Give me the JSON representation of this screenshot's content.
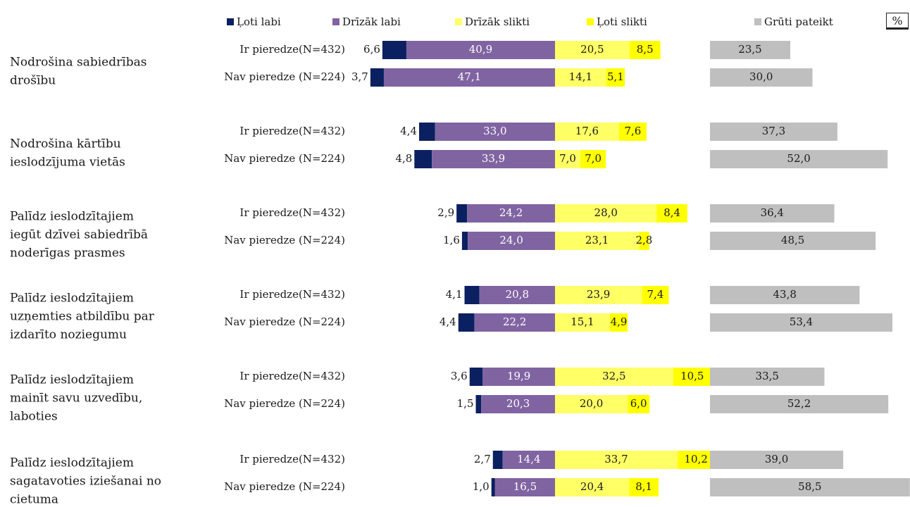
{
  "chart_data": {
    "type": "bar",
    "stacked": "diverging",
    "unit_label": "%",
    "legend": [
      {
        "name": "Ļoti labi",
        "color": "#0b2060"
      },
      {
        "name": "Drīzāk labi",
        "color": "#8064a2"
      },
      {
        "name": "Drīzāk slikti",
        "color": "#ffff66"
      },
      {
        "name": "Ļoti slikti",
        "color": "#ffff00"
      },
      {
        "name": "Grūti pateikt",
        "color": "#bfbfbf"
      }
    ],
    "groups": [
      {
        "label": [
          "Nodrošina sabiedrības",
          "drošību"
        ],
        "rows": [
          {
            "label": "Ir pieredze(N=432)",
            "values": [
              6.6,
              40.9,
              20.5,
              8.5,
              23.5
            ],
            "texts": [
              "6,6",
              "40,9",
              "20,5",
              "8,5",
              "23,5"
            ]
          },
          {
            "label": "Nav pieredze (N=224)",
            "values": [
              3.7,
              47.1,
              14.1,
              5.1,
              30.0
            ],
            "texts": [
              "3,7",
              "47,1",
              "14,1",
              "5,1",
              "30,0"
            ]
          }
        ]
      },
      {
        "label": [
          "Nodrošina kārtību",
          "ieslodzījuma vietās"
        ],
        "rows": [
          {
            "label": "Ir pieredze(N=432)",
            "values": [
              4.4,
              33.0,
              17.6,
              7.6,
              37.3
            ],
            "texts": [
              "4,4",
              "33,0",
              "17,6",
              "7,6",
              "37,3"
            ]
          },
          {
            "label": "Nav pieredze (N=224)",
            "values": [
              4.8,
              33.9,
              7.0,
              7.0,
              52.0
            ],
            "texts": [
              "4,8",
              "33,9",
              "7,0",
              "7,0",
              "52,0"
            ]
          }
        ]
      },
      {
        "label": [
          "Palīdz ieslodzītajiem",
          "iegūt dzīvei sabiedrībā",
          "noderīgas prasmes"
        ],
        "rows": [
          {
            "label": "Ir pieredze(N=432)",
            "values": [
              2.9,
              24.2,
              28.0,
              8.4,
              36.4
            ],
            "texts": [
              "2,9",
              "24,2",
              "28,0",
              "8,4",
              "36,4"
            ]
          },
          {
            "label": "Nav pieredze (N=224)",
            "values": [
              1.6,
              24.0,
              23.1,
              2.8,
              48.5
            ],
            "texts": [
              "1,6",
              "24,0",
              "23,1",
              "2,8",
              "48,5"
            ]
          }
        ]
      },
      {
        "label": [
          "Palīdz ieslodzītajiem",
          "uzņemties atbildību par",
          "izdarīto noziegumu"
        ],
        "rows": [
          {
            "label": "Ir pieredze(N=432)",
            "values": [
              4.1,
              20.8,
              23.9,
              7.4,
              43.8
            ],
            "texts": [
              "4,1",
              "20,8",
              "23,9",
              "7,4",
              "43,8"
            ]
          },
          {
            "label": "Nav pieredze (N=224)",
            "values": [
              4.4,
              22.2,
              15.1,
              4.9,
              53.4
            ],
            "texts": [
              "4,4",
              "22,2",
              "15,1",
              "4,9",
              "53,4"
            ]
          }
        ]
      },
      {
        "label": [
          "Palīdz ieslodzītajiem",
          "mainīt savu uzvedību,",
          "laboties"
        ],
        "rows": [
          {
            "label": "Ir pieredze(N=432)",
            "values": [
              3.6,
              19.9,
              32.5,
              10.5,
              33.5
            ],
            "texts": [
              "3,6",
              "19,9",
              "32,5",
              "10,5",
              "33,5"
            ]
          },
          {
            "label": "Nav pieredze (N=224)",
            "values": [
              1.5,
              20.3,
              20.0,
              6.0,
              52.2
            ],
            "texts": [
              "1,5",
              "20,3",
              "20,0",
              "6,0",
              "52,2"
            ]
          }
        ]
      },
      {
        "label": [
          "Palīdz ieslodzītajiem",
          "sagatavoties iziešanai no",
          "cietuma"
        ],
        "rows": [
          {
            "label": "Ir pieredze(N=432)",
            "values": [
              2.7,
              14.4,
              33.7,
              10.2,
              39.0
            ],
            "texts": [
              "2,7",
              "14,4",
              "33,7",
              "10,2",
              "39,0"
            ]
          },
          {
            "label": "Nav pieredze (N=224)",
            "values": [
              1.0,
              16.5,
              20.4,
              8.1,
              58.5
            ],
            "texts": [
              "1,0",
              "16,5",
              "20,4",
              "8,1",
              "58,5"
            ]
          }
        ]
      }
    ]
  }
}
